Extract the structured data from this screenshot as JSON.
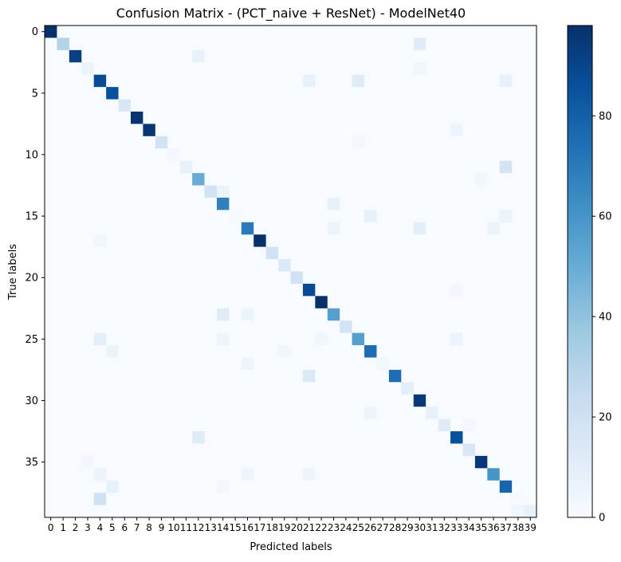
{
  "chart_data": {
    "type": "heatmap",
    "title": "Confusion Matrix - (PCT_naive + ResNet) - ModelNet40",
    "xlabel": "Predicted labels",
    "ylabel": "True labels",
    "size": 40,
    "x_ticks": [
      "0",
      "1",
      "2",
      "3",
      "4",
      "5",
      "6",
      "7",
      "8",
      "9",
      "10",
      "11",
      "12",
      "13",
      "14",
      "15",
      "16",
      "17",
      "18",
      "19",
      "20",
      "21",
      "22",
      "23",
      "24",
      "25",
      "26",
      "27",
      "28",
      "29",
      "30",
      "31",
      "32",
      "33",
      "34",
      "35",
      "36",
      "37",
      "38",
      "39"
    ],
    "y_ticks": [
      "0",
      "5",
      "10",
      "15",
      "20",
      "25",
      "30",
      "35"
    ],
    "colormap": "Blues",
    "colormap_stops": [
      "#f7fbff",
      "#deebf7",
      "#c6dbef",
      "#9ecae1",
      "#6baed6",
      "#4292c6",
      "#2171b5",
      "#08519c",
      "#08306b"
    ],
    "value_range": [
      0,
      98
    ],
    "colorbar_ticks": [
      "0",
      "20",
      "40",
      "60",
      "80"
    ],
    "colorbar_tick_values": [
      0,
      20,
      40,
      60,
      80
    ],
    "diagonal": [
      98,
      30,
      92,
      6,
      88,
      86,
      15,
      97,
      96,
      18,
      2,
      8,
      50,
      18,
      68,
      1,
      70,
      98,
      20,
      14,
      20,
      88,
      98,
      55,
      18,
      55,
      75,
      4,
      75,
      10,
      95,
      8,
      12,
      86,
      15,
      95,
      60,
      78,
      1,
      8
    ],
    "off_diagonal": [
      [
        1,
        30,
        12
      ],
      [
        2,
        12,
        8
      ],
      [
        4,
        21,
        8
      ],
      [
        4,
        25,
        12
      ],
      [
        4,
        37,
        8
      ],
      [
        11,
        37,
        18
      ],
      [
        12,
        35,
        4
      ],
      [
        13,
        14,
        6
      ],
      [
        14,
        23,
        8
      ],
      [
        15,
        26,
        8
      ],
      [
        15,
        37,
        6
      ],
      [
        16,
        23,
        6
      ],
      [
        16,
        30,
        10
      ],
      [
        16,
        36,
        6
      ],
      [
        23,
        14,
        12
      ],
      [
        23,
        16,
        6
      ],
      [
        25,
        4,
        10
      ],
      [
        25,
        14,
        5
      ],
      [
        25,
        33,
        6
      ],
      [
        25,
        22,
        4
      ],
      [
        26,
        5,
        6
      ],
      [
        26,
        19,
        4
      ],
      [
        27,
        16,
        5
      ],
      [
        28,
        21,
        14
      ],
      [
        31,
        26,
        5
      ],
      [
        33,
        12,
        12
      ],
      [
        36,
        4,
        6
      ],
      [
        36,
        16,
        5
      ],
      [
        36,
        21,
        5
      ],
      [
        37,
        5,
        8
      ],
      [
        37,
        14,
        3
      ],
      [
        38,
        4,
        20
      ],
      [
        39,
        38,
        4
      ],
      [
        17,
        4,
        4
      ],
      [
        8,
        33,
        5
      ],
      [
        21,
        33,
        3
      ],
      [
        9,
        25,
        3
      ],
      [
        32,
        34,
        3
      ],
      [
        35,
        3,
        3
      ],
      [
        3,
        30,
        4
      ]
    ]
  }
}
